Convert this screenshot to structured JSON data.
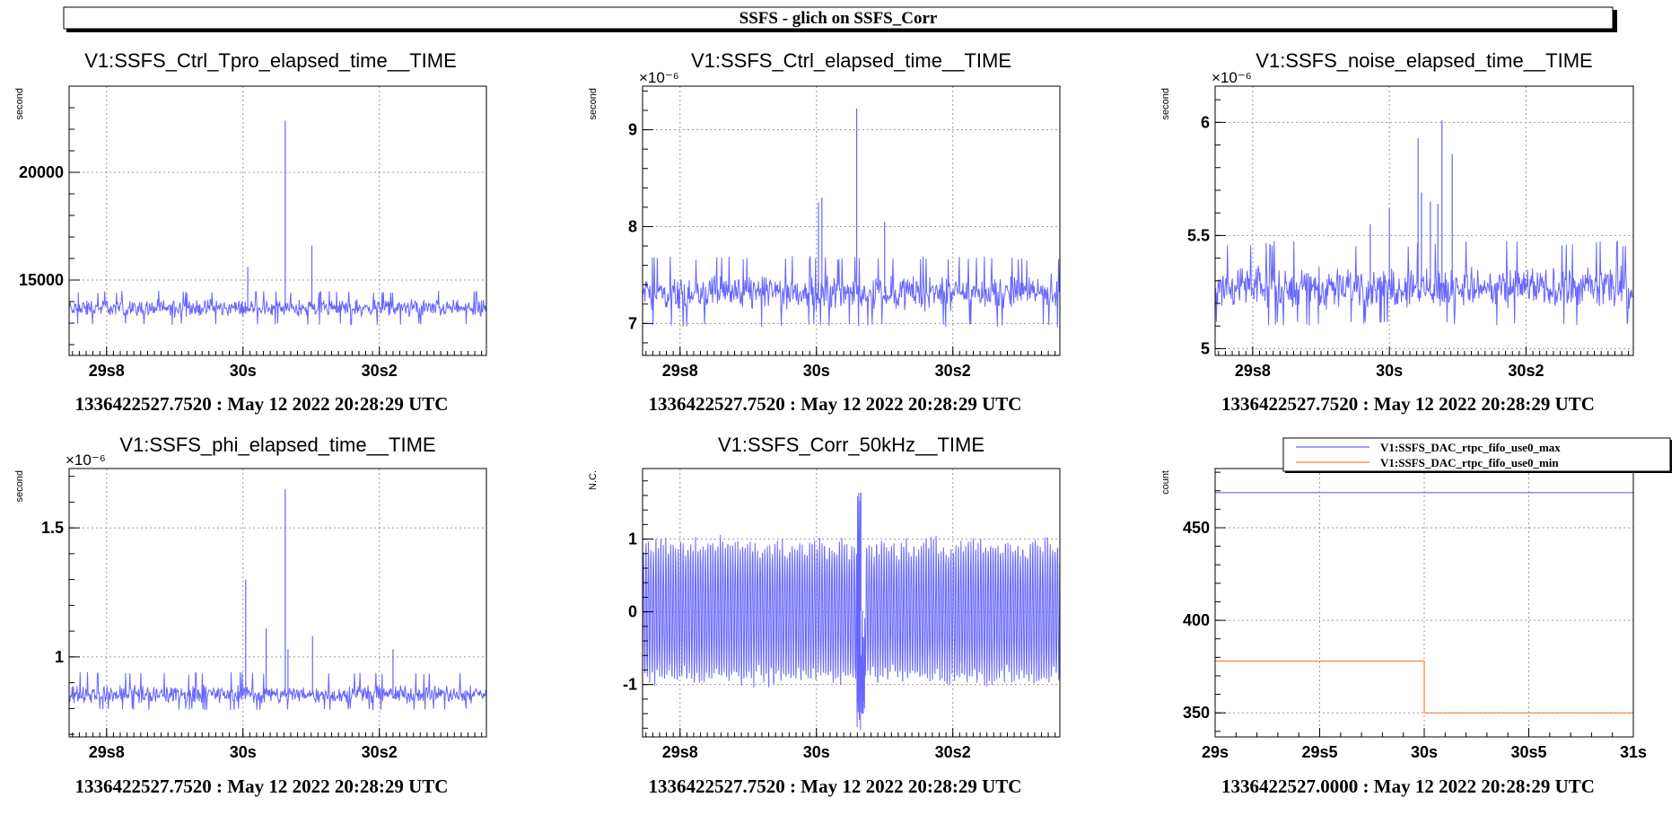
{
  "page_title": "SSFS - glich on  SSFS_Corr",
  "colors": {
    "trace": "#6666ff",
    "trace_max": "#6666ff",
    "trace_min": "#ff7f2a",
    "grid": "#9a9a9a",
    "axis": "#000000"
  },
  "chart_data": [
    {
      "type": "line",
      "title": "V1:SSFS_Ctrl_Tpro_elapsed_time__TIME",
      "ylabel": "second",
      "exponent_label": "",
      "footer": "1336422527.7520 : May 12 2022 20:28:29 UTC",
      "xlim": [
        29.745,
        30.357
      ],
      "ylim": [
        11500,
        24000
      ],
      "x_ticks": [
        29.8,
        30.0,
        30.2
      ],
      "x_tick_labels": [
        "29s8",
        "30s",
        "30s2"
      ],
      "y_ticks": [
        15000,
        20000
      ],
      "y_tick_labels": [
        "15000",
        "20000"
      ],
      "noise": {
        "mean": 13700,
        "band": [
          13000,
          14400
        ],
        "amplitude": 450,
        "step_ms": 0.5
      },
      "spikes": [
        {
          "x": 30.007,
          "y": 15600
        },
        {
          "x": 30.062,
          "y": 22400
        },
        {
          "x": 30.101,
          "y": 16600
        }
      ],
      "series": [
        {
          "name": "",
          "color": "#6666ff"
        }
      ]
    },
    {
      "type": "line",
      "title": "V1:SSFS_Ctrl_elapsed_time__TIME",
      "ylabel": "second",
      "exponent_label": "×10⁻⁶",
      "footer": "1336422527.7520 : May 12 2022 20:28:29 UTC",
      "xlim": [
        29.745,
        30.357
      ],
      "ylim": [
        6.67,
        9.45
      ],
      "x_ticks": [
        29.8,
        30.0,
        30.2
      ],
      "x_tick_labels": [
        "29s8",
        "30s",
        "30s2"
      ],
      "y_ticks": [
        7,
        8,
        9
      ],
      "y_tick_labels": [
        "7",
        "8",
        "9"
      ],
      "noise": {
        "mean": 7.32,
        "band": [
          7.0,
          7.65
        ],
        "amplitude": 0.2,
        "step_ms": 0.5
      },
      "spikes": [
        {
          "x": 30.003,
          "y": 8.25
        },
        {
          "x": 30.008,
          "y": 8.3
        },
        {
          "x": 30.059,
          "y": 9.22
        },
        {
          "x": 30.1,
          "y": 8.05
        }
      ],
      "series": [
        {
          "name": "",
          "color": "#6666ff"
        }
      ]
    },
    {
      "type": "line",
      "title": "V1:SSFS_noise_elapsed_time__TIME",
      "ylabel": "second",
      "exponent_label": "×10⁻⁶",
      "footer": "1336422527.7520 : May 12 2022 20:28:29 UTC",
      "xlim": [
        29.745,
        30.357
      ],
      "ylim": [
        4.97,
        6.16
      ],
      "x_ticks": [
        29.8,
        30.0,
        30.2
      ],
      "x_tick_labels": [
        "29s8",
        "30s",
        "30s2"
      ],
      "y_ticks": [
        5,
        5.5,
        6
      ],
      "y_tick_labels": [
        "5",
        "5.5",
        "6"
      ],
      "noise": {
        "mean": 5.27,
        "band": [
          5.12,
          5.45
        ],
        "amplitude": 0.1,
        "step_ms": 0.5
      },
      "spikes": [
        {
          "x": 29.972,
          "y": 5.55
        },
        {
          "x": 30.0,
          "y": 5.62
        },
        {
          "x": 30.042,
          "y": 5.93
        },
        {
          "x": 30.047,
          "y": 5.69
        },
        {
          "x": 30.06,
          "y": 5.65
        },
        {
          "x": 30.071,
          "y": 5.64
        },
        {
          "x": 30.077,
          "y": 6.01
        },
        {
          "x": 30.092,
          "y": 5.86
        }
      ],
      "series": [
        {
          "name": "",
          "color": "#6666ff"
        }
      ]
    },
    {
      "type": "line",
      "title": "V1:SSFS_phi_elapsed_time__TIME",
      "ylabel": "second",
      "exponent_label": "×10⁻⁶",
      "footer": "1336422527.7520 : May 12 2022 20:28:29 UTC",
      "xlim": [
        29.745,
        30.357
      ],
      "ylim": [
        0.69,
        1.73
      ],
      "x_ticks": [
        29.8,
        30.0,
        30.2
      ],
      "x_tick_labels": [
        "29s8",
        "30s",
        "30s2"
      ],
      "y_ticks": [
        1.0,
        1.5
      ],
      "y_tick_labels": [
        "1",
        "1.5"
      ],
      "noise": {
        "mean": 0.855,
        "band": [
          0.8,
          0.93
        ],
        "amplitude": 0.04,
        "step_ms": 0.5
      },
      "spikes": [
        {
          "x": 30.004,
          "y": 1.3
        },
        {
          "x": 30.034,
          "y": 1.11
        },
        {
          "x": 30.062,
          "y": 1.65
        },
        {
          "x": 30.066,
          "y": 1.03
        },
        {
          "x": 30.102,
          "y": 1.08
        },
        {
          "x": 30.22,
          "y": 1.03
        }
      ],
      "series": [
        {
          "name": "",
          "color": "#6666ff"
        }
      ]
    },
    {
      "type": "line",
      "title": "V1:SSFS_Corr_50kHz__TIME",
      "ylabel": "N.C.",
      "exponent_label": "",
      "footer": "1336422527.7520 : May 12 2022 20:28:29 UTC",
      "xlim": [
        29.745,
        30.357
      ],
      "ylim": [
        -1.72,
        1.97
      ],
      "x_ticks": [
        29.8,
        30.0,
        30.2
      ],
      "x_tick_labels": [
        "29s8",
        "30s",
        "30s2"
      ],
      "y_ticks": [
        -1,
        0,
        1
      ],
      "y_tick_labels": [
        "-1",
        "0",
        "1"
      ],
      "oscillation": {
        "frequency_hz": 275,
        "amplitude": 0.88,
        "jitter": 0.12
      },
      "glitch": {
        "x": 30.065,
        "max": 1.64,
        "min": -1.4,
        "width_ms": 6
      },
      "series": [
        {
          "name": "",
          "color": "#6666ff"
        }
      ]
    },
    {
      "type": "line",
      "title": "",
      "ylabel": "count",
      "exponent_label": "",
      "footer": "1336422527.0000 : May 12 2022 20:28:29 UTC",
      "xlim": [
        29.0,
        31.0
      ],
      "ylim": [
        337,
        482
      ],
      "x_ticks": [
        29.0,
        29.5,
        30.0,
        30.5,
        31.0
      ],
      "x_tick_labels": [
        "29s",
        "29s5",
        "30s",
        "30s5",
        "31s"
      ],
      "x_minor_step": 0.1,
      "y_ticks": [
        350,
        400,
        450
      ],
      "y_tick_labels": [
        "350",
        "400",
        "450"
      ],
      "legend_position": "top-right",
      "series": [
        {
          "name": "V1:SSFS_DAC_rtpc_fifo_use0_max",
          "color": "#6666ff",
          "x": [
            29.0,
            31.0
          ],
          "y": [
            469,
            469
          ]
        },
        {
          "name": "V1:SSFS_DAC_rtpc_fifo_use0_min",
          "color": "#ff7f2a",
          "x": [
            29.0,
            30.0,
            30.0,
            31.0
          ],
          "y": [
            378,
            378,
            350,
            350
          ]
        }
      ]
    }
  ]
}
